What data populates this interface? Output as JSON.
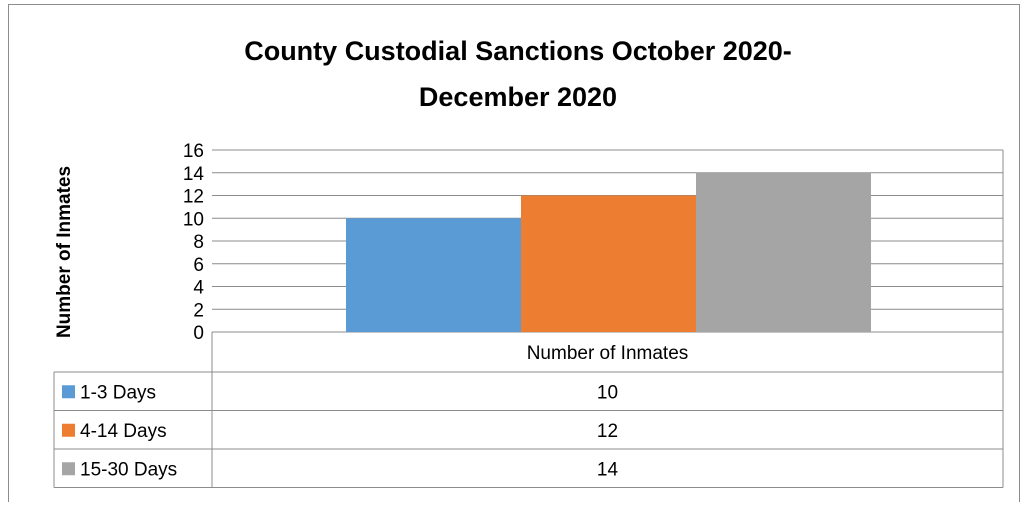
{
  "chart_data": {
    "type": "bar",
    "title_lines": [
      "County Custodial Sanctions October 2020-",
      "December 2020"
    ],
    "ylabel": "Number of Inmates",
    "ylim": [
      0,
      16
    ],
    "yticks": [
      0,
      2,
      4,
      6,
      8,
      10,
      12,
      14,
      16
    ],
    "categories": [
      "Number of Inmates"
    ],
    "grid": true,
    "legend_placement": "data-table",
    "series": [
      {
        "name": "1-3 Days",
        "values": [
          10
        ],
        "color": "#5b9bd5"
      },
      {
        "name": "4-14 Days",
        "values": [
          12
        ],
        "color": "#ed7d31"
      },
      {
        "name": "15-30 Days",
        "values": [
          14
        ],
        "color": "#a5a5a5"
      }
    ],
    "data_table": {
      "header": "Number of Inmates",
      "rows": [
        {
          "label": "1-3 Days",
          "value": "10"
        },
        {
          "label": "4-14 Days",
          "value": "12"
        },
        {
          "label": "15-30 Days",
          "value": "14"
        }
      ]
    }
  }
}
